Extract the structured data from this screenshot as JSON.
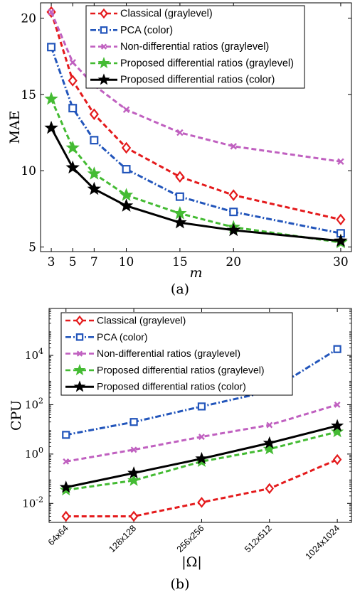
{
  "chart_data": [
    {
      "type": "line",
      "caption": "(a)",
      "xlabel": "m",
      "ylabel": "MAE",
      "x": [
        3,
        5,
        7,
        10,
        15,
        20,
        30
      ],
      "x_ticks": [
        "3",
        "5",
        "7",
        "10",
        "15",
        "20",
        "30"
      ],
      "y_ticks": [
        5,
        10,
        15,
        20
      ],
      "ylim": [
        4.7,
        21
      ],
      "xlim": [
        2,
        31
      ],
      "legend_position": "top-right",
      "series": [
        {
          "name": "Classical (graylevel)",
          "color": "#e41a1c",
          "marker": "diamond",
          "line": "dashed",
          "values": [
            20.4,
            15.9,
            13.7,
            11.5,
            9.6,
            8.4,
            6.8
          ]
        },
        {
          "name": "PCA (color)",
          "color": "#2255bb",
          "marker": "square",
          "line": "dashdot",
          "values": [
            18.1,
            14.1,
            12.0,
            10.1,
            8.3,
            7.3,
            5.9
          ]
        },
        {
          "name": "Non-differential ratios (graylevel)",
          "color": "#c060c0",
          "marker": "x",
          "line": "dashed",
          "values": [
            20.4,
            17.1,
            15.6,
            14.0,
            12.5,
            11.6,
            10.6
          ]
        },
        {
          "name": "Proposed differential ratios (graylevel)",
          "color": "#44bb33",
          "marker": "star",
          "line": "dashed",
          "values": [
            14.7,
            11.5,
            9.8,
            8.4,
            7.2,
            6.3,
            5.3
          ]
        },
        {
          "name": "Proposed differential ratios (color)",
          "color": "#000000",
          "marker": "star",
          "line": "solid",
          "values": [
            12.8,
            10.2,
            8.8,
            7.7,
            6.6,
            6.1,
            5.4
          ]
        }
      ]
    },
    {
      "type": "line",
      "caption": "(b)",
      "xlabel": "|Ω|",
      "ylabel": "CPU",
      "y_scale": "log",
      "categories": [
        "64x64",
        "128x128",
        "256x256",
        "512x512",
        "1024x1024"
      ],
      "x": [
        4096,
        16384,
        65536,
        262144,
        1048576
      ],
      "y_ticks": [
        "10^-2",
        "10^0",
        "10^2",
        "10^4"
      ],
      "legend_position": "top-left",
      "series": [
        {
          "name": "Classical (graylevel)",
          "color": "#e41a1c",
          "marker": "diamond",
          "line": "dashed",
          "values": [
            0.003,
            0.003,
            0.011,
            0.04,
            0.6
          ]
        },
        {
          "name": "PCA (color)",
          "color": "#2255bb",
          "marker": "square",
          "line": "dashdot",
          "values": [
            6,
            20,
            85,
            350,
            18000
          ]
        },
        {
          "name": "Non-differential ratios (graylevel)",
          "color": "#c060c0",
          "marker": "x",
          "line": "dashed",
          "values": [
            0.5,
            1.5,
            5,
            15,
            100
          ]
        },
        {
          "name": "Proposed differential ratios (graylevel)",
          "color": "#44bb33",
          "marker": "star",
          "line": "dashed",
          "values": [
            0.035,
            0.085,
            0.5,
            1.6,
            8
          ]
        },
        {
          "name": "Proposed differential ratios (color)",
          "color": "#000000",
          "marker": "star",
          "line": "solid",
          "values": [
            0.045,
            0.17,
            0.65,
            2.8,
            14
          ]
        }
      ]
    }
  ]
}
